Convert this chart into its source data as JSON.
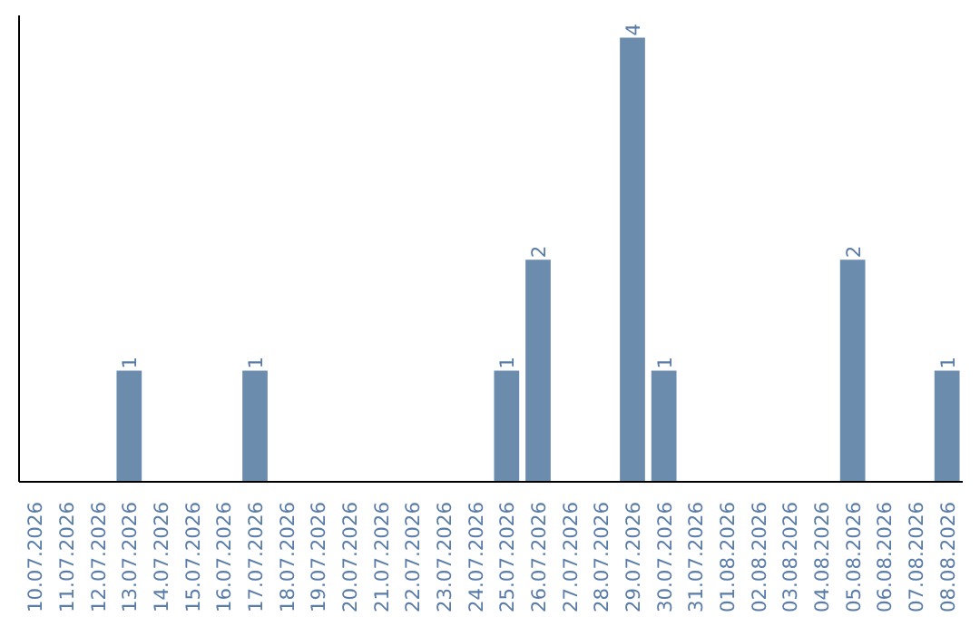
{
  "chart_data": {
    "type": "bar",
    "categories": [
      "10.07.2026",
      "11.07.2026",
      "12.07.2026",
      "13.07.2026",
      "14.07.2026",
      "15.07.2026",
      "16.07.2026",
      "17.07.2026",
      "18.07.2026",
      "19.07.2026",
      "20.07.2026",
      "21.07.2026",
      "22.07.2026",
      "23.07.2026",
      "24.07.2026",
      "25.07.2026",
      "26.07.2026",
      "27.07.2026",
      "28.07.2026",
      "29.07.2026",
      "30.07.2026",
      "31.07.2026",
      "01.08.2026",
      "02.08.2026",
      "03.08.2026",
      "04.08.2026",
      "05.08.2026",
      "06.08.2026",
      "07.08.2026",
      "08.08.2026"
    ],
    "values": [
      0,
      0,
      0,
      1,
      0,
      0,
      0,
      1,
      0,
      0,
      0,
      0,
      0,
      0,
      0,
      1,
      2,
      0,
      0,
      4,
      1,
      0,
      0,
      0,
      0,
      0,
      2,
      0,
      0,
      1
    ],
    "value_labels": [
      null,
      null,
      null,
      "1",
      null,
      null,
      null,
      "1",
      null,
      null,
      null,
      null,
      null,
      null,
      null,
      "1",
      "2",
      null,
      null,
      "4",
      "1",
      null,
      null,
      null,
      null,
      null,
      "2",
      null,
      null,
      "1"
    ],
    "color": "#6b8cad",
    "ylim": [
      0,
      4.2
    ],
    "tick_labels": "x",
    "grid": false
  }
}
